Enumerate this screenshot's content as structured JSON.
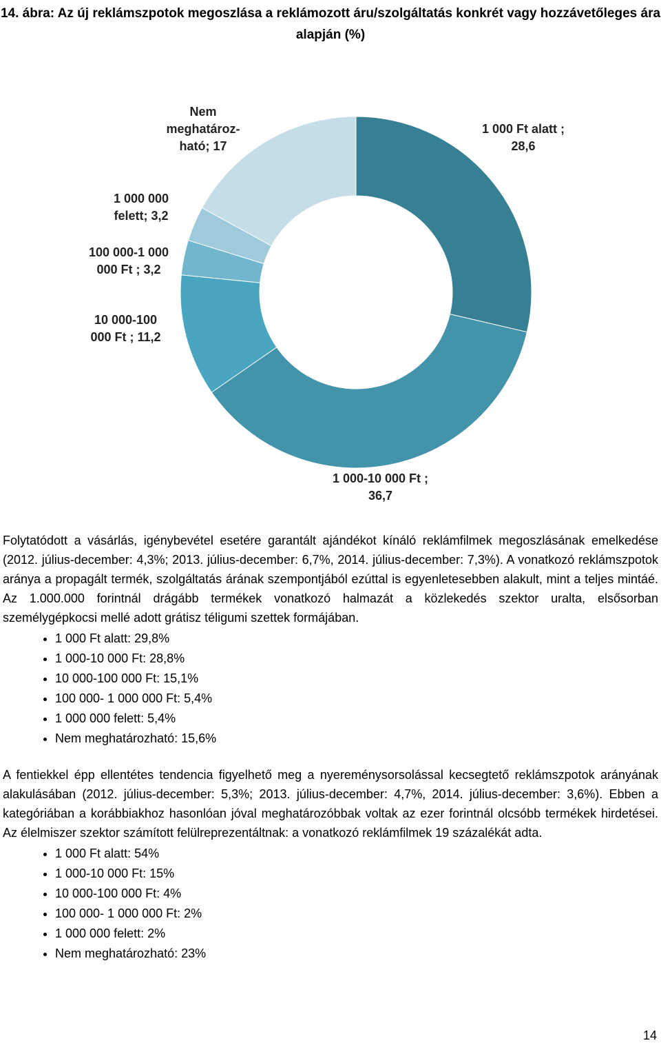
{
  "title": "14. ábra: Az új reklámszpotok megoszlása a reklámozott áru/szolgáltatás konkrét vagy hozzávetőleges ára alapján (%)",
  "chart_data": {
    "type": "donut",
    "categories": [
      "1 000 Ft alatt ;",
      "1 000-10 000 Ft ;",
      "10 000-100 000 Ft ;",
      "100 000-1 000 000 Ft ;",
      "1 000 000 felett;",
      "Nem meghatároz-ható;"
    ],
    "values": [
      28.6,
      36.7,
      11.2,
      3.2,
      3.2,
      17
    ],
    "value_labels": [
      "28,6",
      "36,7",
      "11,2",
      "3,2",
      "3,2",
      "17"
    ],
    "colors": [
      "#377f93",
      "#4393ab",
      "#4aa6c0",
      "#72b6cd",
      "#9fcadb",
      "#c4dde6"
    ]
  },
  "sections": [
    {
      "text": "Folytatódott a vásárlás, igénybevétel esetére garantált ajándékot kínáló reklámfilmek megoszlásának emelkedése (2012. július-december: 4,3%; 2013. július-december: 6,7%, 2014. július-december: 7,3%). A vonatkozó reklámszpotok aránya a propagált termék, szolgáltatás árának szempontjából ezúttal is egyenletesebben alakult, mint a teljes mintáé. Az 1.000.000 forintnál drágább termékek vonatkozó halmazát a közlekedés szektor uralta, elsősorban személygépkocsi mellé adott grátisz téligumi szettek formájában.",
      "items": [
        "1 000 Ft alatt: 29,8%",
        "1 000-10 000 Ft: 28,8%",
        "10 000-100 000 Ft: 15,1%",
        "100 000- 1 000 000 Ft: 5,4%",
        "1 000 000 felett: 5,4%",
        "Nem meghatározható: 15,6%"
      ]
    },
    {
      "text": "A fentiekkel épp ellentétes tendencia figyelhető meg a nyereménysorsolással kecsegtető reklámszpotok arányának alakulásában (2012. július-december: 5,3%; 2013. július-december: 4,7%, 2014. július-december: 3,6%). Ebben a kategóriában a korábbiakhoz hasonlóan jóval meghatározóbbak voltak az ezer forintnál olcsóbb termékek hirdetései. Az élelmiszer szektor számított felülreprezentáltnak: a vonatkozó reklámfilmek 19 százalékát adta.",
      "items": [
        "1 000 Ft alatt: 54%",
        "1 000-10 000 Ft: 15%",
        "10 000-100 000 Ft: 4%",
        "100 000- 1 000 000 Ft: 2%",
        "1 000 000 felett: 2%",
        "Nem meghatározható: 23%"
      ]
    }
  ],
  "page_number": "14"
}
